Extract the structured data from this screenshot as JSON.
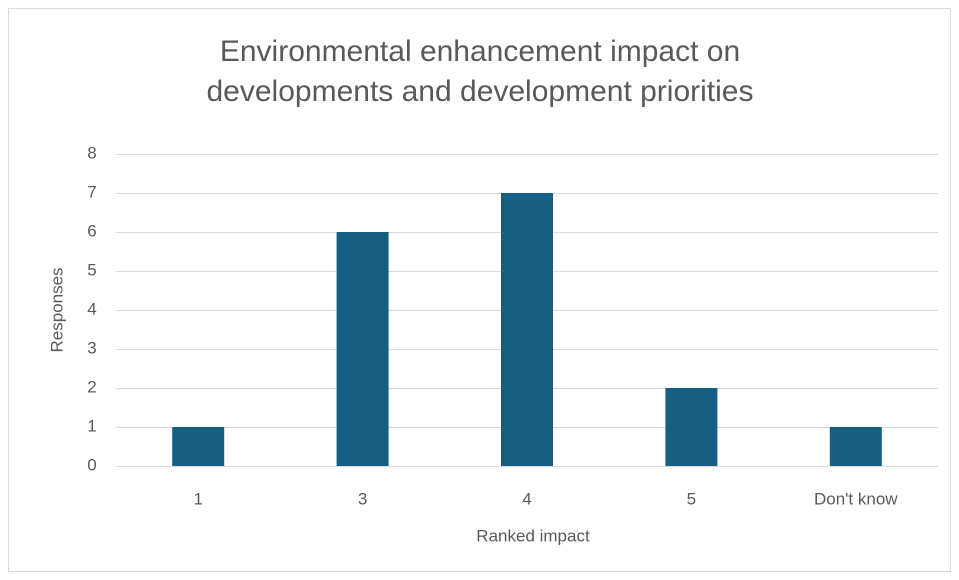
{
  "chart_data": {
    "type": "bar",
    "title": "Environmental enhancement impact on developments and development priorities",
    "x_label": "Ranked impact",
    "y_label": "Responses",
    "categories": [
      "1",
      "3",
      "4",
      "5",
      "Don't know"
    ],
    "values": [
      1,
      6,
      7,
      2,
      1
    ],
    "color": "#156082",
    "ylim": [
      0,
      8
    ],
    "yticks": [
      0,
      1,
      2,
      3,
      4,
      5,
      6,
      7,
      8
    ],
    "grid": true
  }
}
